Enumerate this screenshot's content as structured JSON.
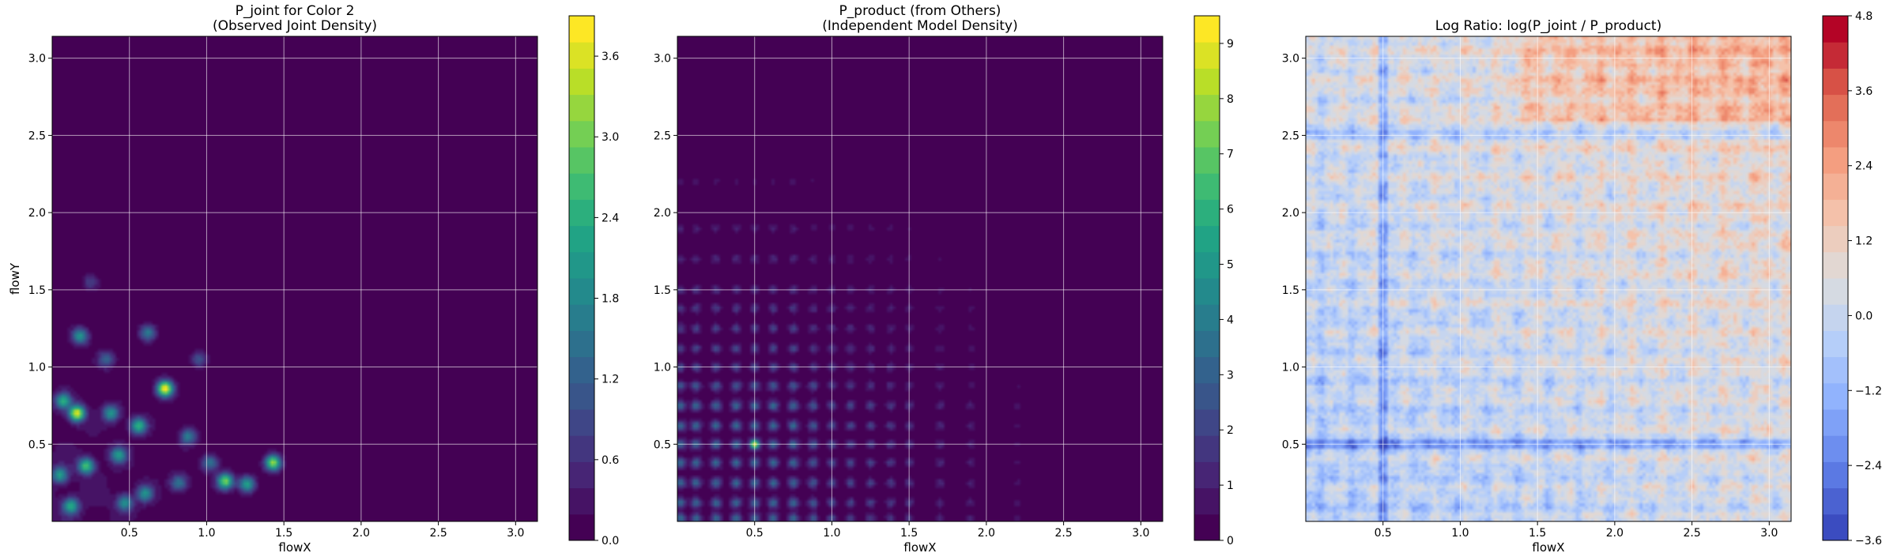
{
  "chart_data": [
    {
      "type": "heatmap",
      "title_line1": "P_joint for Color 2",
      "title_line2": "(Observed Joint Density)",
      "xlabel": "flowX",
      "ylabel": "flowY",
      "xlim": [
        0.0,
        3.14159
      ],
      "ylim": [
        0.0,
        3.14159
      ],
      "xticks": [
        0.5,
        1.0,
        1.5,
        2.0,
        2.5,
        3.0
      ],
      "yticks": [
        0.5,
        1.0,
        1.5,
        2.0,
        2.5,
        3.0
      ],
      "xtick_labels": [
        "0.5",
        "1.0",
        "1.5",
        "2.0",
        "2.5",
        "3.0"
      ],
      "ytick_labels": [
        "0.5",
        "1.0",
        "1.5",
        "2.0",
        "2.5",
        "3.0"
      ],
      "grid": true,
      "colormap": "viridis",
      "color_range": [
        0.0,
        3.9
      ],
      "colorbar_ticks": [
        0.0,
        0.6,
        1.2,
        1.8,
        2.4,
        3.0,
        3.6
      ],
      "colorbar_tick_labels": [
        "0.0",
        "0.6",
        "1.2",
        "1.8",
        "2.4",
        "3.0",
        "3.6"
      ],
      "peaks": [
        {
          "x": 0.16,
          "y": 0.7,
          "value": 3.6
        },
        {
          "x": 0.73,
          "y": 0.86,
          "value": 3.9
        },
        {
          "x": 0.22,
          "y": 0.36,
          "value": 2.6
        },
        {
          "x": 0.43,
          "y": 0.43,
          "value": 2.0
        },
        {
          "x": 0.38,
          "y": 0.7,
          "value": 2.0
        },
        {
          "x": 0.56,
          "y": 0.62,
          "value": 2.4
        },
        {
          "x": 0.12,
          "y": 0.1,
          "value": 2.2
        },
        {
          "x": 1.12,
          "y": 0.26,
          "value": 3.0
        },
        {
          "x": 1.26,
          "y": 0.24,
          "value": 2.2
        },
        {
          "x": 1.43,
          "y": 0.38,
          "value": 3.2
        },
        {
          "x": 0.6,
          "y": 0.18,
          "value": 1.8
        },
        {
          "x": 0.82,
          "y": 0.25,
          "value": 1.5
        },
        {
          "x": 0.88,
          "y": 0.55,
          "value": 1.6
        },
        {
          "x": 0.05,
          "y": 0.3,
          "value": 2.0
        },
        {
          "x": 0.18,
          "y": 1.2,
          "value": 2.0
        },
        {
          "x": 0.62,
          "y": 1.22,
          "value": 1.6
        },
        {
          "x": 0.35,
          "y": 1.05,
          "value": 1.2
        },
        {
          "x": 0.95,
          "y": 1.05,
          "value": 1.0
        },
        {
          "x": 0.25,
          "y": 1.55,
          "value": 0.8
        },
        {
          "x": 0.07,
          "y": 0.78,
          "value": 2.2
        },
        {
          "x": 1.02,
          "y": 0.38,
          "value": 1.5
        },
        {
          "x": 0.47,
          "y": 0.12,
          "value": 1.8
        }
      ]
    },
    {
      "type": "heatmap",
      "title_line1": "P_product (from Others)",
      "title_line2": "(Independent Model Density)",
      "xlabel": "flowX",
      "ylabel": "",
      "xlim": [
        0.0,
        3.14159
      ],
      "ylim": [
        0.0,
        3.14159
      ],
      "xticks": [
        0.5,
        1.0,
        1.5,
        2.0,
        2.5,
        3.0
      ],
      "yticks": [
        0.5,
        1.0,
        1.5,
        2.0,
        2.5,
        3.0
      ],
      "xtick_labels": [
        "0.5",
        "1.0",
        "1.5",
        "2.0",
        "2.5",
        "3.0"
      ],
      "ytick_labels": [
        "0.5",
        "1.0",
        "1.5",
        "2.0",
        "2.5",
        "3.0"
      ],
      "grid": true,
      "colormap": "viridis",
      "color_range": [
        0.0,
        9.5
      ],
      "colorbar_ticks": [
        0,
        1,
        2,
        3,
        4,
        5,
        6,
        7,
        8,
        9
      ],
      "colorbar_tick_labels": [
        "0",
        "1",
        "2",
        "3",
        "4",
        "5",
        "6",
        "7",
        "8",
        "9"
      ],
      "marginal_peaks_x": [
        0.02,
        0.12,
        0.25,
        0.38,
        0.5,
        0.62,
        0.75,
        0.88,
        1.0,
        1.12,
        1.25,
        1.38,
        1.5,
        1.7,
        1.9,
        2.2
      ],
      "marginal_peaks_y": [
        0.02,
        0.12,
        0.25,
        0.38,
        0.5,
        0.62,
        0.75,
        0.88,
        1.0,
        1.12,
        1.25,
        1.38,
        1.5,
        1.7,
        1.9,
        2.2
      ],
      "strongest_peak": {
        "x": 0.5,
        "y": 0.5,
        "value": 9.0
      }
    },
    {
      "type": "heatmap",
      "title_line1": "Log Ratio: log(P_joint / P_product)",
      "title_line2": "",
      "xlabel": "flowX",
      "ylabel": "",
      "xlim": [
        0.0,
        3.14159
      ],
      "ylim": [
        0.0,
        3.14159
      ],
      "xticks": [
        0.5,
        1.0,
        1.5,
        2.0,
        2.5,
        3.0
      ],
      "yticks": [
        0.5,
        1.0,
        1.5,
        2.0,
        2.5,
        3.0
      ],
      "xtick_labels": [
        "0.5",
        "1.0",
        "1.5",
        "2.0",
        "2.5",
        "3.0"
      ],
      "ytick_labels": [
        "0.5",
        "1.0",
        "1.5",
        "2.0",
        "2.5",
        "3.0"
      ],
      "grid": true,
      "colormap": "coolwarm",
      "color_range": [
        -3.6,
        4.8
      ],
      "colorbar_ticks": [
        -3.6,
        -2.4,
        -1.2,
        0.0,
        1.2,
        2.4,
        3.6,
        4.8
      ],
      "colorbar_tick_labels": [
        "−3.6",
        "−2.4",
        "−1.2",
        "0.0",
        "1.2",
        "2.4",
        "3.6",
        "4.8"
      ],
      "trend": "ratio increases toward upper right (high flowX, high flowY)"
    }
  ]
}
